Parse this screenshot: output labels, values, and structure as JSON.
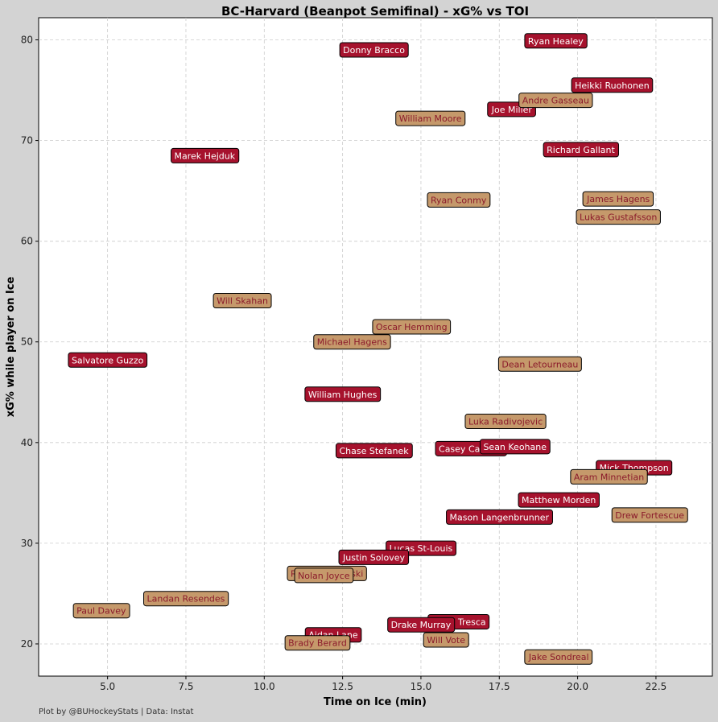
{
  "chart_data": {
    "type": "scatter",
    "title": "BC-Harvard (Beanpot Semifinal) - xG% vs TOI",
    "xlabel": "Time on Ice (min)",
    "ylabel": "xG% while player on Ice",
    "xlim": [
      2.8,
      24.3
    ],
    "ylim": [
      16.8,
      82.2
    ],
    "xticks": [
      5.0,
      7.5,
      10.0,
      12.5,
      15.0,
      17.5,
      20.0,
      22.5
    ],
    "xtick_labels": [
      "5.0",
      "7.5",
      "10.0",
      "12.5",
      "15.0",
      "17.5",
      "20.0",
      "22.5"
    ],
    "yticks": [
      20,
      30,
      40,
      50,
      60,
      70,
      80
    ],
    "ytick_labels": [
      "20",
      "30",
      "40",
      "50",
      "60",
      "70",
      "80"
    ],
    "grid": true,
    "series": [
      {
        "name": "BC",
        "color": "#a6122d",
        "text_color": "#ffffff",
        "points": [
          {
            "label": "Ryan Healey",
            "x": 19.3,
            "y": 79.9
          },
          {
            "label": "Donny Bracco",
            "x": 13.5,
            "y": 79.0
          },
          {
            "label": "Heikki Ruohonen",
            "x": 21.1,
            "y": 75.5
          },
          {
            "label": "Joe Miller",
            "x": 17.9,
            "y": 73.1
          },
          {
            "label": "Richard Gallant",
            "x": 20.1,
            "y": 69.1
          },
          {
            "label": "Marek Hejduk",
            "x": 8.1,
            "y": 68.5
          },
          {
            "label": "Salvatore Guzzo",
            "x": 5.0,
            "y": 48.2
          },
          {
            "label": "William Hughes",
            "x": 12.5,
            "y": 44.8
          },
          {
            "label": "Chase Stefanek",
            "x": 13.5,
            "y": 39.2
          },
          {
            "label": "Casey Carreau",
            "x": 16.6,
            "y": 39.4
          },
          {
            "label": "Sean Keohane",
            "x": 18.0,
            "y": 39.6
          },
          {
            "label": "Mick Thompson",
            "x": 21.8,
            "y": 37.5
          },
          {
            "label": "Matthew Morden",
            "x": 19.4,
            "y": 34.3
          },
          {
            "label": "Mason Langenbrunner",
            "x": 17.5,
            "y": 32.6
          },
          {
            "label": "Lucas St-Louis",
            "x": 15.0,
            "y": 29.5
          },
          {
            "label": "Justin Solovey",
            "x": 13.5,
            "y": 28.6
          },
          {
            "label": "Philip Tresca",
            "x": 16.2,
            "y": 22.2
          },
          {
            "label": "Drake Murray",
            "x": 15.0,
            "y": 21.9
          },
          {
            "label": "Aidan Lane",
            "x": 12.2,
            "y": 20.9
          }
        ]
      },
      {
        "name": "Harvard",
        "color": "#c5996b",
        "text_color": "#8b1a2b",
        "points": [
          {
            "label": "Andre Gasseau",
            "x": 19.3,
            "y": 74.0
          },
          {
            "label": "William Moore",
            "x": 15.3,
            "y": 72.2
          },
          {
            "label": "James Hagens",
            "x": 21.3,
            "y": 64.2
          },
          {
            "label": "Ryan Conmy",
            "x": 16.2,
            "y": 64.1
          },
          {
            "label": "Lukas Gustafsson",
            "x": 21.3,
            "y": 62.4
          },
          {
            "label": "Will Skahan",
            "x": 9.3,
            "y": 54.1
          },
          {
            "label": "Oscar Hemming",
            "x": 14.7,
            "y": 51.5
          },
          {
            "label": "Michael Hagens",
            "x": 12.8,
            "y": 50.0
          },
          {
            "label": "Dean Letourneau",
            "x": 18.8,
            "y": 47.8
          },
          {
            "label": "Luka Radivojevic",
            "x": 17.7,
            "y": 42.1
          },
          {
            "label": "Aram Minnetian",
            "x": 21.0,
            "y": 36.6
          },
          {
            "label": "Drew Fortescue",
            "x": 22.3,
            "y": 32.8
          },
          {
            "label": "Ryan Chudzinski",
            "x": 12.0,
            "y": 27.0
          },
          {
            "label": "Nolan Joyce",
            "x": 11.9,
            "y": 26.8
          },
          {
            "label": "Landan Resendes",
            "x": 7.5,
            "y": 24.5
          },
          {
            "label": "Paul Davey",
            "x": 4.8,
            "y": 23.3
          },
          {
            "label": "Will Vote",
            "x": 15.8,
            "y": 20.4
          },
          {
            "label": "Brady Berard",
            "x": 11.7,
            "y": 20.1
          },
          {
            "label": "Jake Sondreal",
            "x": 19.4,
            "y": 18.7
          }
        ]
      }
    ]
  },
  "footer": {
    "credit": "Plot by @BUHockeyStats | Data: Instat"
  }
}
